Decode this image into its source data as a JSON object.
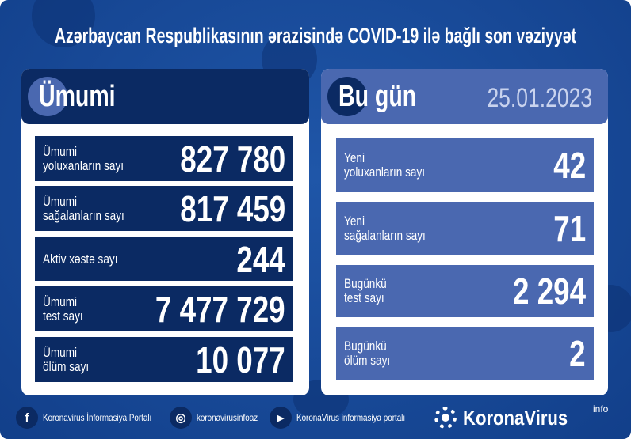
{
  "title": "Azərbaycan Respublikasının ərazisində COVID-19 ilə bağlı son vəziyyət",
  "colors": {
    "background": "#1a4c9c",
    "dark_navy": "#0b2a63",
    "light_blue": "#4a68b0",
    "date": "#c9d3ee"
  },
  "total": {
    "heading": "Ümumi",
    "rows": [
      {
        "label": "Ümumi\nyoluxanların sayı",
        "value": "827 780"
      },
      {
        "label": "Ümumi\nsağalanların sayı",
        "value": "817 459"
      },
      {
        "label": "Aktiv xəstə sayı",
        "value": "244"
      },
      {
        "label": "Ümumi\ntest sayı",
        "value": "7 477 729"
      },
      {
        "label": "Ümumi\nölüm sayı",
        "value": "10 077"
      }
    ]
  },
  "today": {
    "heading": "Bu gün",
    "date": "25.01.2023",
    "rows": [
      {
        "label": "Yeni\nyoluxanların sayı",
        "value": "42"
      },
      {
        "label": "Yeni\nsağalanların sayı",
        "value": "71"
      },
      {
        "label": "Bugünkü\ntest sayı",
        "value": "2 294"
      },
      {
        "label": "Bugünkü\nölüm sayı",
        "value": "2"
      }
    ]
  },
  "footer": {
    "facebook": "Koronavirus İnformasiya Portalı",
    "instagram": "koronavirusinfoaz",
    "youtube": "KoronaVirus informasiya portalı",
    "brand": "KoronaVirus",
    "brand_sup": "info",
    "icons": {
      "facebook": "f",
      "instagram": "◎",
      "youtube": "▶"
    }
  }
}
